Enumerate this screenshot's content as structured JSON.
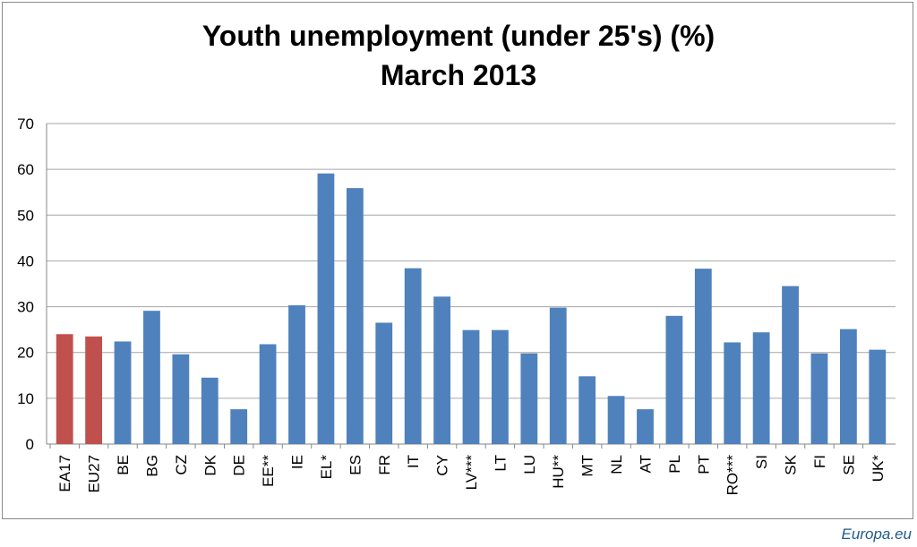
{
  "chart_data": {
    "type": "bar",
    "title": "Youth unemployment  (under 25's) (%)",
    "subtitle": "March 2013",
    "xlabel": "",
    "ylabel": "",
    "ylim": [
      0,
      70
    ],
    "yticks": [
      0,
      10,
      20,
      30,
      40,
      50,
      60,
      70
    ],
    "grid": true,
    "legend": "none",
    "categories": [
      "EA17",
      "EU27",
      "BE",
      "BG",
      "CZ",
      "DK",
      "DE",
      "EE**",
      "IE",
      "EL*",
      "ES",
      "FR",
      "IT",
      "CY",
      "LV***",
      "LT",
      "LU",
      "HU**",
      "MT",
      "NL",
      "AT",
      "PL",
      "PT",
      "RO***",
      "SI",
      "SK",
      "FI",
      "SE",
      "UK*"
    ],
    "values": [
      24.0,
      23.5,
      22.4,
      29.1,
      19.6,
      14.5,
      7.6,
      21.8,
      30.3,
      59.1,
      55.9,
      26.5,
      38.4,
      32.2,
      24.9,
      24.9,
      19.8,
      29.8,
      14.8,
      10.5,
      7.6,
      28.0,
      38.3,
      22.2,
      24.4,
      34.5,
      19.8,
      25.1,
      20.6
    ],
    "colors": {
      "aggregate": "#c0504d",
      "country": "#4f81bd",
      "grid": "#a6a6a6",
      "axis": "#868686"
    },
    "aggregate_categories": [
      "EA17",
      "EU27"
    ]
  },
  "source": "Europa.eu"
}
